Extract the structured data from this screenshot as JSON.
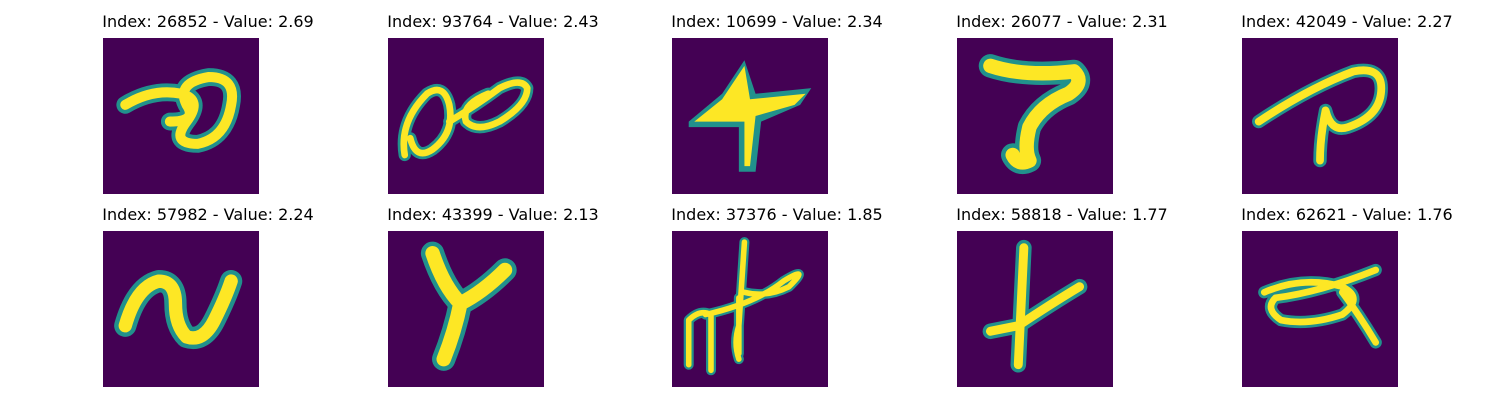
{
  "colors": {
    "background": "#440154",
    "stroke_core": "#fde725",
    "stroke_edge": "#21918c",
    "page": "#ffffff"
  },
  "panels": [
    {
      "title": "Index: 26852 - Value: 2.69"
    },
    {
      "title": "Index: 93764 - Value: 2.43"
    },
    {
      "title": "Index: 10699 - Value: 2.34"
    },
    {
      "title": "Index: 26077 - Value: 2.31"
    },
    {
      "title": "Index: 42049 - Value: 2.27"
    },
    {
      "title": "Index: 57982 - Value: 2.24"
    },
    {
      "title": "Index: 43399 - Value: 2.13"
    },
    {
      "title": "Index: 37376 - Value: 1.85"
    },
    {
      "title": "Index: 58818 - Value: 1.77"
    },
    {
      "title": "Index: 62621 - Value: 1.76"
    }
  ]
}
